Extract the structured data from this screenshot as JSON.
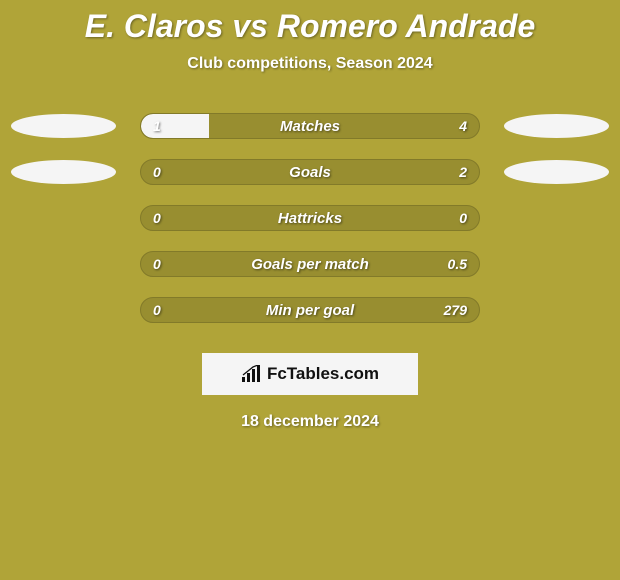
{
  "title": "E. Claros vs Romero Andrade",
  "subtitle": "Club competitions, Season 2024",
  "date": "18 december 2024",
  "logo_text": "FcTables.com",
  "colors": {
    "background": "#b0a438",
    "bar_bg": "#988e30",
    "bar_border": "#827a29",
    "fill": "#f5f5f5",
    "badge": "#f5f5f5",
    "text": "#ffffff"
  },
  "stats": [
    {
      "label": "Matches",
      "left_val": "1",
      "right_val": "4",
      "left_pct": 20,
      "right_pct": 0,
      "show_left_badge": true,
      "show_right_badge": true
    },
    {
      "label": "Goals",
      "left_val": "0",
      "right_val": "2",
      "left_pct": 0,
      "right_pct": 0,
      "show_left_badge": true,
      "show_right_badge": true
    },
    {
      "label": "Hattricks",
      "left_val": "0",
      "right_val": "0",
      "left_pct": 0,
      "right_pct": 0,
      "show_left_badge": false,
      "show_right_badge": false
    },
    {
      "label": "Goals per match",
      "left_val": "0",
      "right_val": "0.5",
      "left_pct": 0,
      "right_pct": 0,
      "show_left_badge": false,
      "show_right_badge": false
    },
    {
      "label": "Min per goal",
      "left_val": "0",
      "right_val": "279",
      "left_pct": 0,
      "right_pct": 0,
      "show_left_badge": false,
      "show_right_badge": false
    }
  ]
}
